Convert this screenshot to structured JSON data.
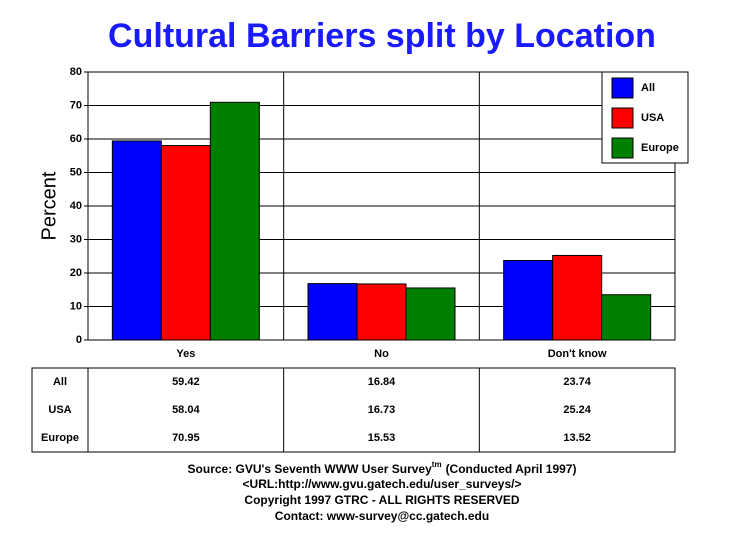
{
  "chart_data": {
    "type": "bar",
    "title": "Cultural Barriers split by Location",
    "y_label": "Percent",
    "categories": [
      "Yes",
      "No",
      "Don't know"
    ],
    "series": [
      {
        "name": "All",
        "color": "#0000ff",
        "values": [
          59.42,
          16.84,
          23.74
        ]
      },
      {
        "name": "USA",
        "color": "#ff0000",
        "values": [
          58.04,
          16.73,
          25.24
        ]
      },
      {
        "name": "Europe",
        "color": "#008000",
        "values": [
          70.95,
          15.53,
          13.52
        ]
      }
    ],
    "ylim": [
      0,
      80
    ],
    "yticks": [
      0,
      10,
      20,
      30,
      40,
      50,
      60,
      70,
      80
    ],
    "grid": true,
    "legend": "top-right"
  },
  "footer": {
    "source": "Source: GVU's Seventh WWW User Survey",
    "source_mark": "tm",
    "source_note": "(Conducted April 1997)",
    "url": "<URL:http://www.gvu.gatech.edu/user_surveys/>",
    "copyright": "Copyright 1997 GTRC - ALL RIGHTS RESERVED",
    "contact": "Contact: www-survey@cc.gatech.edu"
  }
}
